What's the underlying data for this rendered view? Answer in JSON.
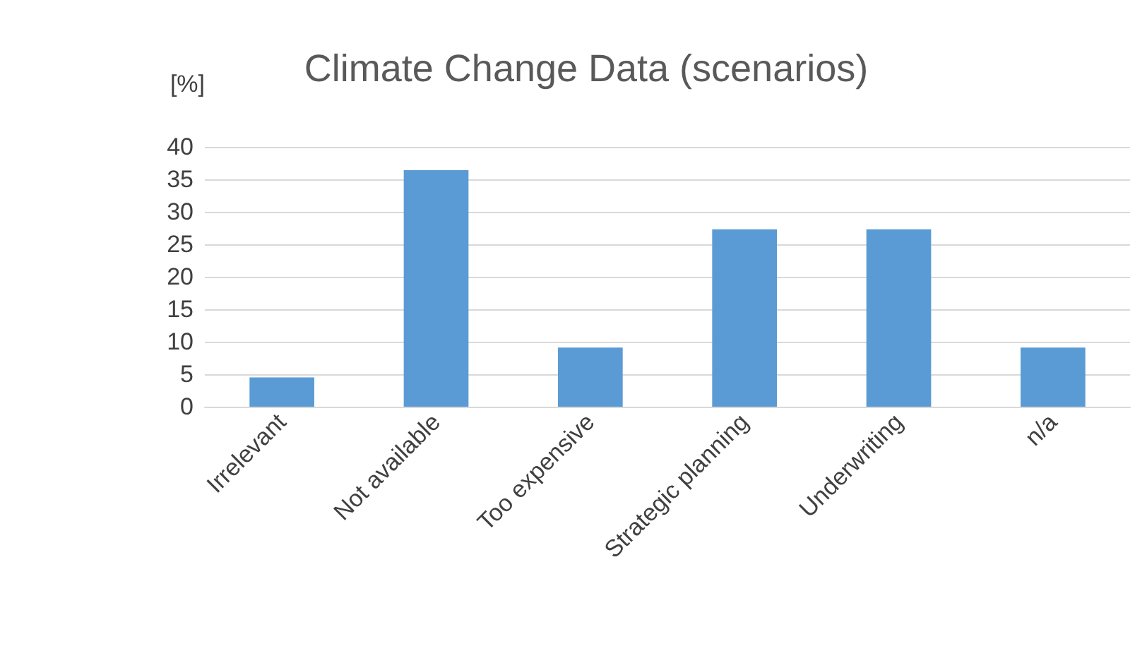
{
  "chart_data": {
    "type": "bar",
    "title": "Climate Change Data (scenarios)",
    "ylabel": "[%]",
    "categories": [
      "Irrelevant",
      "Not available",
      "Too expensive",
      "Strategic planning",
      "Underwriting",
      "n/a"
    ],
    "values": [
      4.5,
      36.4,
      9.1,
      27.3,
      27.3,
      9.1
    ],
    "color": "#5b9bd5",
    "ylim": [
      0,
      40
    ],
    "yticks": [
      0,
      5,
      10,
      15,
      20,
      25,
      30,
      35,
      40
    ],
    "grid": "y"
  }
}
